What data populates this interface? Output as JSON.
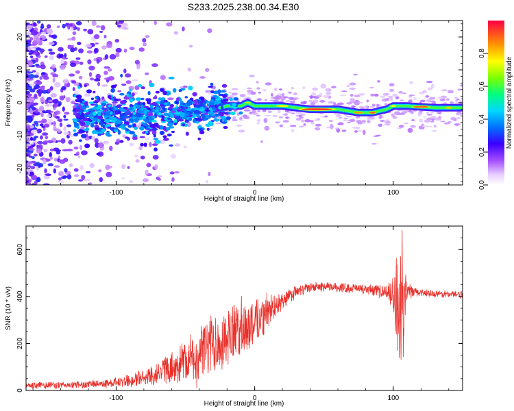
{
  "title": "S233.2025.238.00.34.E30",
  "chart_data": [
    {
      "type": "heatmap",
      "name": "spectrogram",
      "xlabel": "Height of straight line (km)",
      "ylabel": "Frequency (Hz)",
      "xlim": [
        -165,
        150
      ],
      "ylim": [
        -25,
        25
      ],
      "xticks": [
        -100,
        0,
        100
      ],
      "yticks": [
        -20,
        -10,
        0,
        10,
        20
      ],
      "ridge": {
        "description_points_x": [
          -130,
          -110,
          -90,
          -70,
          -50,
          -30,
          -20,
          -10,
          -5,
          0,
          20,
          40,
          60,
          75,
          85,
          95,
          100,
          110,
          130,
          148
        ],
        "freq_y": [
          -4,
          -4,
          -4,
          -4,
          -3,
          -2,
          -1,
          -1,
          0,
          -1,
          -1,
          -2,
          -2,
          -3,
          -3,
          -2,
          -1,
          -1,
          -1.5,
          -1.5
        ]
      },
      "colorbar": {
        "label": "Normalized spectral amplitude",
        "ticks": [
          0.0,
          0.2,
          0.4,
          0.6,
          0.8
        ],
        "range": [
          0,
          1
        ]
      }
    },
    {
      "type": "line",
      "name": "snr",
      "xlabel": "Height of straight line (km)",
      "ylabel": "SNR (10 * v/v)",
      "xlim": [
        -165,
        150
      ],
      "ylim": [
        0,
        700
      ],
      "xticks": [
        -100,
        0,
        100
      ],
      "yticks": [
        0,
        200,
        400,
        600
      ],
      "series": [
        {
          "name": "SNR",
          "color": "#e8302a",
          "envelope_x": [
            -165,
            -120,
            -90,
            -70,
            -55,
            -40,
            -30,
            -20,
            -10,
            0,
            10,
            20,
            30,
            40,
            60,
            80,
            95,
            100,
            103,
            105,
            107,
            108,
            110,
            115,
            130,
            150
          ],
          "envelope_mean": [
            20,
            25,
            40,
            70,
            110,
            150,
            200,
            230,
            260,
            300,
            330,
            380,
            420,
            440,
            440,
            430,
            420,
            410,
            380,
            350,
            380,
            410,
            420,
            420,
            410,
            410
          ],
          "envelope_amp": [
            15,
            15,
            25,
            45,
            70,
            110,
            140,
            130,
            120,
            100,
            70,
            40,
            25,
            20,
            20,
            20,
            30,
            80,
            220,
            300,
            250,
            120,
            40,
            20,
            15,
            15
          ]
        }
      ]
    }
  ]
}
